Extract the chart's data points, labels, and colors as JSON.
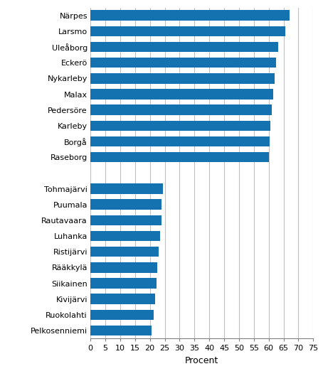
{
  "categories": [
    "Pelkosenniemi",
    "Ruokolahti",
    "Kivijärvi",
    "Siikainen",
    "Rääkkylä",
    "Ristijärvi",
    "Luhanka",
    "Rautavaara",
    "Puumala",
    "Tohmajärvi",
    "",
    "Raseborg",
    "Borgå",
    "Karleby",
    "Pedersöre",
    "Malax",
    "Nykarleby",
    "Eckerö",
    "Uleåborg",
    "Larsmo",
    "Närpes"
  ],
  "values": [
    20.5,
    21.2,
    21.8,
    22.2,
    22.5,
    23.0,
    23.5,
    23.8,
    24.0,
    24.5,
    0,
    60.0,
    60.2,
    60.5,
    61.0,
    61.5,
    62.0,
    62.5,
    63.2,
    65.5,
    67.0
  ],
  "bar_color": "#1472b0",
  "xlabel": "Procent",
  "xlim": [
    0,
    75
  ],
  "xticks": [
    0,
    5,
    10,
    15,
    20,
    25,
    30,
    35,
    40,
    45,
    50,
    55,
    60,
    65,
    70,
    75
  ],
  "background_color": "#ffffff",
  "grid_color": "#c0c0c0",
  "bar_height": 0.65,
  "figsize": [
    4.54,
    5.29
  ],
  "dpi": 100,
  "label_fontsize": 8.0,
  "xlabel_fontsize": 9.0
}
